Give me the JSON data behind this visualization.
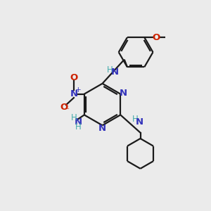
{
  "bg_color": "#ebebeb",
  "bond_color": "#1a1a1a",
  "N_color": "#3333bb",
  "O_color": "#cc2200",
  "H_color": "#44aaaa",
  "lw": 1.6,
  "dbl_sep": 0.09,
  "figsize": [
    3.0,
    3.0
  ],
  "dpi": 100,
  "xlim": [
    0,
    10
  ],
  "ylim": [
    0,
    10
  ]
}
